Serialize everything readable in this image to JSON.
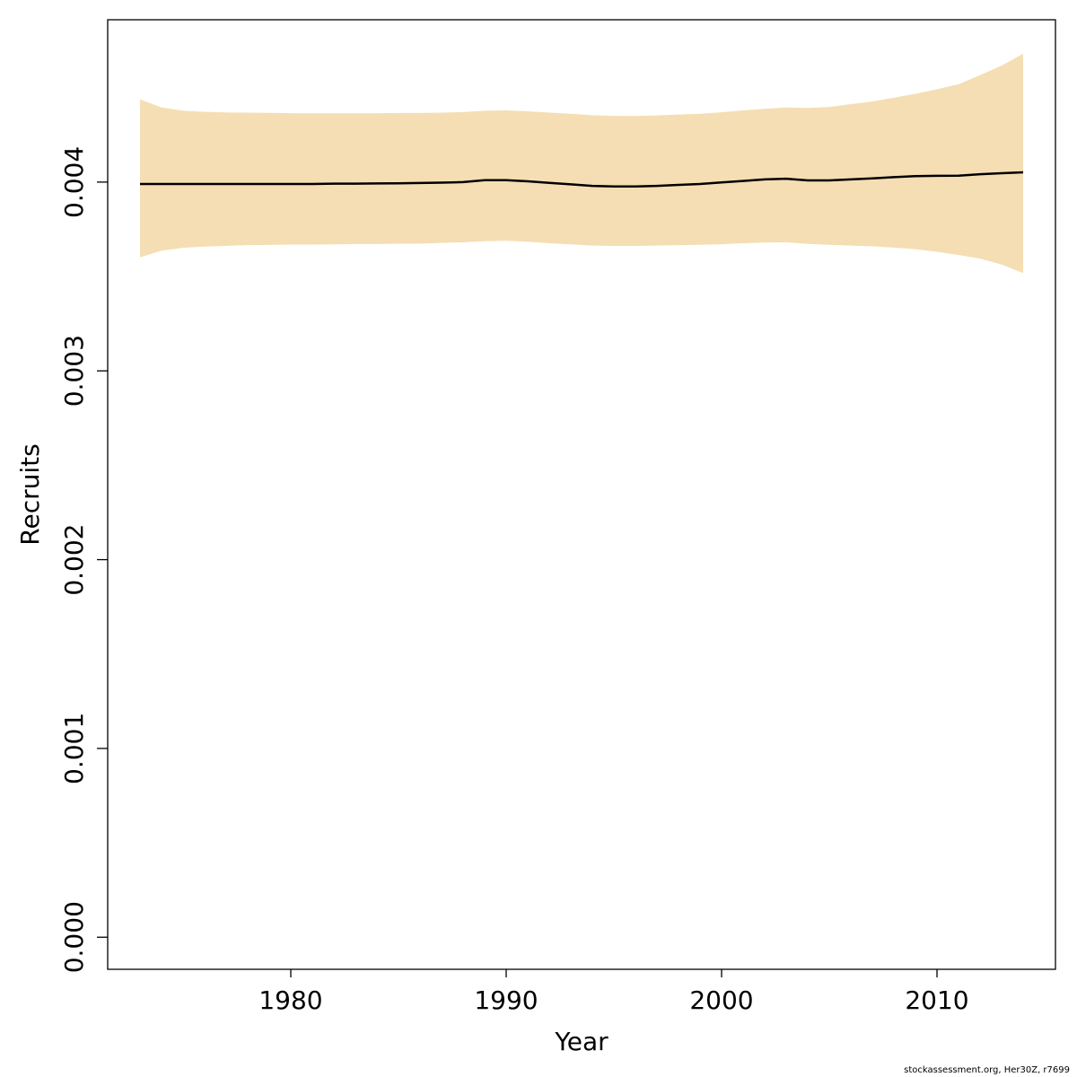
{
  "chart_data": {
    "type": "line",
    "xlabel": "Year",
    "ylabel": "Recruits",
    "xlim": [
      1971.5,
      2015.5
    ],
    "ylim": [
      -0.00017,
      0.00486
    ],
    "x_ticks": [
      1980,
      1990,
      2000,
      2010
    ],
    "x_tick_labels": [
      "1980",
      "1990",
      "2000",
      "2010"
    ],
    "y_ticks": [
      0,
      0.001,
      0.002,
      0.003,
      0.004
    ],
    "y_tick_labels": [
      "0.000",
      "0.001",
      "0.002",
      "0.003",
      "0.004"
    ],
    "grid": false,
    "band_color": "#F5DEB3",
    "line_color": "#000000",
    "years": [
      1973,
      1974,
      1975,
      1976,
      1977,
      1978,
      1979,
      1980,
      1981,
      1982,
      1983,
      1984,
      1985,
      1986,
      1987,
      1988,
      1989,
      1990,
      1991,
      1992,
      1993,
      1994,
      1995,
      1996,
      1997,
      1998,
      1999,
      2000,
      2001,
      2002,
      2003,
      2004,
      2005,
      2006,
      2007,
      2008,
      2009,
      2010,
      2011,
      2012,
      2013,
      2014
    ],
    "series": [
      {
        "name": "",
        "values": [
          0.00399,
          0.00399,
          0.00399,
          0.00399,
          0.00399,
          0.00399,
          0.00399,
          0.00399,
          0.00399,
          0.003992,
          0.003992,
          0.003993,
          0.003994,
          0.003995,
          0.003997,
          0.004,
          0.00401,
          0.00401,
          0.004004,
          0.003996,
          0.003988,
          0.00398,
          0.003977,
          0.003977,
          0.00398,
          0.003985,
          0.00399,
          0.003998,
          0.004006,
          0.004014,
          0.004018,
          0.004009,
          0.004009,
          0.004014,
          0.00402,
          0.004026,
          0.004032,
          0.004033,
          0.004034,
          0.004042,
          0.004047,
          0.004052
        ],
        "lower": [
          0.003601,
          0.003637,
          0.003652,
          0.003658,
          0.003662,
          0.003666,
          0.003667,
          0.003669,
          0.003669,
          0.00367,
          0.003672,
          0.003672,
          0.003674,
          0.003674,
          0.003678,
          0.003681,
          0.003687,
          0.003689,
          0.003684,
          0.003676,
          0.00367,
          0.003664,
          0.003662,
          0.003662,
          0.003664,
          0.003666,
          0.003668,
          0.003671,
          0.003676,
          0.00368,
          0.003681,
          0.003673,
          0.003668,
          0.003664,
          0.00366,
          0.003653,
          0.003645,
          0.003631,
          0.003614,
          0.003595,
          0.003563,
          0.003518
        ],
        "upper": [
          0.004438,
          0.004395,
          0.004378,
          0.004372,
          0.004369,
          0.004368,
          0.004367,
          0.004365,
          0.004365,
          0.004365,
          0.004365,
          0.004365,
          0.004366,
          0.004366,
          0.004368,
          0.004371,
          0.004378,
          0.00438,
          0.004375,
          0.004368,
          0.004362,
          0.004354,
          0.004351,
          0.00435,
          0.004353,
          0.004358,
          0.004362,
          0.00437,
          0.00438,
          0.004388,
          0.004395,
          0.004393,
          0.004398,
          0.004413,
          0.004427,
          0.004447,
          0.004468,
          0.004492,
          0.004518,
          0.004566,
          0.004617,
          0.00468
        ]
      }
    ]
  },
  "footer": {
    "credit": "stockassessment.org, Her30Z, r7699"
  }
}
